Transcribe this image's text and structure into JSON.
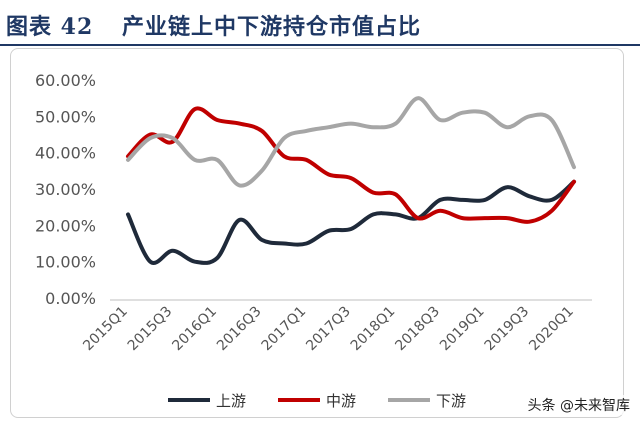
{
  "header": {
    "figure_number": "图表 42",
    "title": "产业链上中下游持仓市值占比"
  },
  "watermark": "头条 @未来智库",
  "chart_data": {
    "type": "line",
    "title": "产业链上中下游持仓市值占比",
    "xlabel": "",
    "ylabel": "",
    "ylim": [
      0,
      0.6
    ],
    "y_ticks": [
      "0.00%",
      "10.00%",
      "20.00%",
      "30.00%",
      "40.00%",
      "50.00%",
      "60.00%"
    ],
    "x_tick_labels": [
      "2015Q1",
      "2015Q3",
      "2016Q1",
      "2016Q3",
      "2017Q1",
      "2017Q3",
      "2018Q1",
      "2018Q3",
      "2019Q1",
      "2019Q3",
      "2020Q1"
    ],
    "x": [
      "2015Q1",
      "2015Q2",
      "2015Q3",
      "2015Q4",
      "2016Q1",
      "2016Q2",
      "2016Q3",
      "2016Q4",
      "2017Q1",
      "2017Q2",
      "2017Q3",
      "2017Q4",
      "2018Q1",
      "2018Q2",
      "2018Q3",
      "2018Q4",
      "2019Q1",
      "2019Q2",
      "2019Q3",
      "2019Q4",
      "2020Q1"
    ],
    "grid": false,
    "legend_position": "bottom",
    "series": [
      {
        "name": "上游",
        "color": "#1f2a3a",
        "values": [
          0.23,
          0.1,
          0.13,
          0.1,
          0.11,
          0.215,
          0.16,
          0.15,
          0.15,
          0.185,
          0.19,
          0.23,
          0.23,
          0.22,
          0.27,
          0.27,
          0.27,
          0.305,
          0.28,
          0.27,
          0.32
        ]
      },
      {
        "name": "中游",
        "color": "#c00000",
        "values": [
          0.39,
          0.45,
          0.43,
          0.52,
          0.49,
          0.48,
          0.46,
          0.39,
          0.38,
          0.34,
          0.33,
          0.29,
          0.285,
          0.22,
          0.24,
          0.22,
          0.22,
          0.22,
          0.21,
          0.24,
          0.32
        ]
      },
      {
        "name": "下游",
        "color": "#a6a6a6",
        "values": [
          0.38,
          0.44,
          0.44,
          0.38,
          0.38,
          0.31,
          0.35,
          0.44,
          0.46,
          0.47,
          0.48,
          0.47,
          0.48,
          0.55,
          0.49,
          0.51,
          0.51,
          0.47,
          0.5,
          0.49,
          0.36
        ]
      }
    ]
  }
}
